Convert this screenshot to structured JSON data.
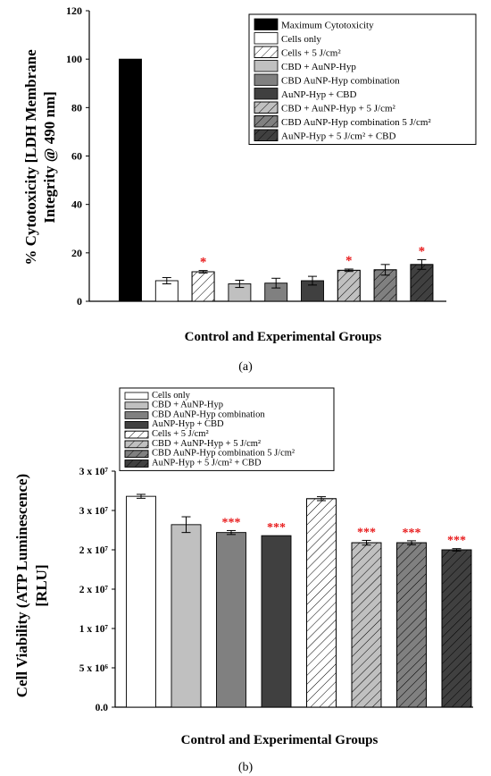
{
  "chart_data": [
    {
      "type": "bar",
      "panel_label": "(a)",
      "ylabel_line1": "% Cytotoxicity [LDH Membrane",
      "ylabel_line2": "Integrity @ 490 nm]",
      "xlabel": "Control and Experimental Groups",
      "ylim": [
        0,
        120
      ],
      "yticks": [
        "0",
        "20",
        "40",
        "60",
        "80",
        "100",
        "120"
      ],
      "legend_position": "top-right",
      "series": [
        {
          "name": "Maximum Cytotoxicity",
          "value": 100,
          "error": 0,
          "sig": "",
          "color": "#000000",
          "hatch": false
        },
        {
          "name": "Cells only",
          "value": 8.5,
          "error": 1.3,
          "sig": "",
          "color": "#ffffff",
          "hatch": false
        },
        {
          "name": "Cells + 5 J/cm²",
          "value": 12.2,
          "error": 0.5,
          "sig": "*",
          "color": "#ffffff",
          "hatch": true
        },
        {
          "name": "CBD + AuNP-Hyp",
          "value": 7.2,
          "error": 1.5,
          "sig": "",
          "color": "#c0c0c0",
          "hatch": false
        },
        {
          "name": "CBD AuNP-Hyp combination",
          "value": 7.5,
          "error": 2.0,
          "sig": "",
          "color": "#808080",
          "hatch": false
        },
        {
          "name": "AuNP-Hyp + CBD",
          "value": 8.5,
          "error": 1.8,
          "sig": "",
          "color": "#404040",
          "hatch": false
        },
        {
          "name": "CBD + AuNP-Hyp + 5 J/cm²",
          "value": 12.8,
          "error": 0.5,
          "sig": "*",
          "color": "#c0c0c0",
          "hatch": true
        },
        {
          "name": "CBD AuNP-Hyp combination 5 J/cm²",
          "value": 13.0,
          "error": 2.2,
          "sig": "",
          "color": "#808080",
          "hatch": true
        },
        {
          "name": "AuNP-Hyp + 5 J/cm² + CBD",
          "value": 15.2,
          "error": 2.0,
          "sig": "*",
          "color": "#404040",
          "hatch": true
        }
      ]
    },
    {
      "type": "bar",
      "panel_label": "(b)",
      "ylabel_line1": "Cell Viability (ATP Luminescence)",
      "ylabel_line2": "[RLU]",
      "xlabel": "Control and Experimental Groups",
      "ylim": [
        0,
        30000000
      ],
      "yticks": [
        "0.0",
        "5 x 10⁶",
        "1 x 10⁷",
        "2 x 10⁷",
        "2 x 10⁷",
        "3 x 10⁷",
        "3 x 10⁷"
      ],
      "legend_position": "top-left",
      "series": [
        {
          "name": "Cells only",
          "value": 26800000,
          "error": 250000,
          "sig": "",
          "color": "#ffffff",
          "hatch": false
        },
        {
          "name": "CBD + AuNP-Hyp",
          "value": 23200000,
          "error": 1000000,
          "sig": "",
          "color": "#c0c0c0",
          "hatch": false
        },
        {
          "name": "CBD AuNP-Hyp combination",
          "value": 22200000,
          "error": 250000,
          "sig": "***",
          "color": "#808080",
          "hatch": false
        },
        {
          "name": "AuNP-Hyp + CBD",
          "value": 21800000,
          "error": 0,
          "sig": "***",
          "color": "#404040",
          "hatch": false
        },
        {
          "name": "Cells + 5 J/cm²",
          "value": 26500000,
          "error": 250000,
          "sig": "",
          "color": "#ffffff",
          "hatch": true
        },
        {
          "name": "CBD + AuNP-Hyp + 5 J/cm²",
          "value": 20900000,
          "error": 300000,
          "sig": "***",
          "color": "#c0c0c0",
          "hatch": true
        },
        {
          "name": "CBD AuNP-Hyp combination 5 J/cm²",
          "value": 20900000,
          "error": 250000,
          "sig": "***",
          "color": "#808080",
          "hatch": true
        },
        {
          "name": "AuNP-Hyp + 5 J/cm² + CBD",
          "value": 20000000,
          "error": 150000,
          "sig": "***",
          "color": "#404040",
          "hatch": true
        }
      ]
    }
  ]
}
